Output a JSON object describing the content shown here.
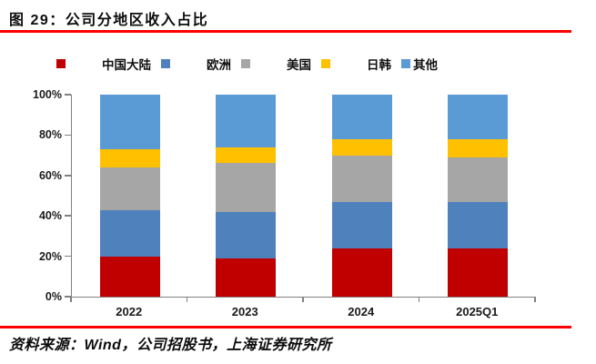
{
  "figure": {
    "title": "图 29：公司分地区收入占比",
    "source": "资料来源：Wind，公司招股书，上海证券研究所"
  },
  "chart_data": {
    "type": "bar",
    "stacked": true,
    "title": "公司分地区收入占比",
    "categories": [
      "2022",
      "2023",
      "2024",
      "2025Q1"
    ],
    "series": [
      {
        "name": "中国大陆",
        "color": "#C00000",
        "values": [
          20,
          19,
          24,
          24
        ]
      },
      {
        "name": "欧洲",
        "color": "#4F81BD",
        "values": [
          23,
          23,
          23,
          23
        ]
      },
      {
        "name": "美国",
        "color": "#A6A6A6",
        "values": [
          21,
          24,
          23,
          22
        ]
      },
      {
        "name": "日韩",
        "color": "#FFC000",
        "values": [
          9,
          8,
          8,
          9
        ]
      },
      {
        "name": "其他",
        "color": "#5B9BD5",
        "values": [
          27,
          26,
          22,
          22
        ]
      }
    ],
    "unit": "%",
    "ylim": [
      0,
      100
    ],
    "y_ticks": [
      "0%",
      "20%",
      "40%",
      "60%",
      "80%",
      "100%"
    ],
    "grid": false,
    "legend_position": "top",
    "axis_color": "#808080",
    "accent_rule_color": "#FE0000"
  }
}
